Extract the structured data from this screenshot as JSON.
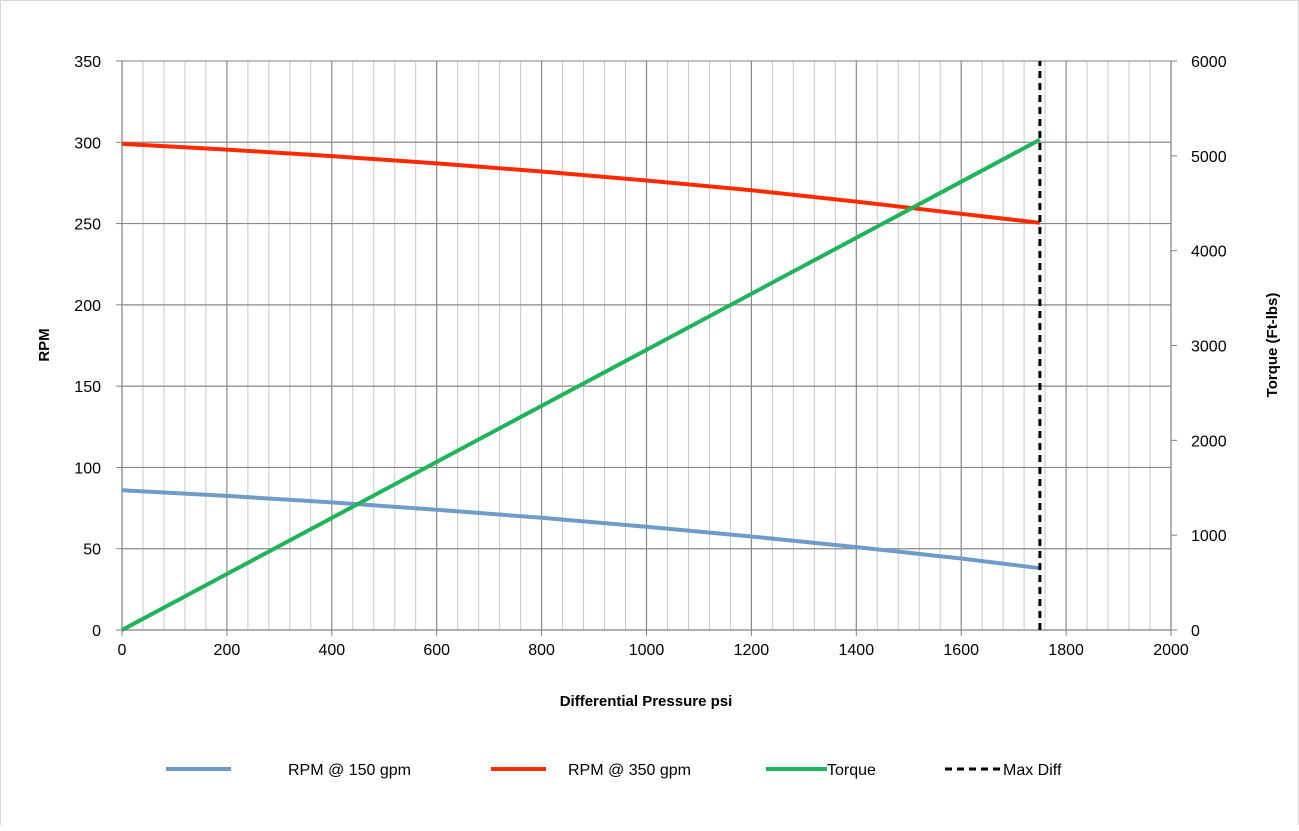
{
  "chart_data": {
    "type": "line",
    "title": "",
    "xlabel": "Differential Pressure psi",
    "ylabel": "RPM",
    "y2label": "Torque (Ft-lbs)",
    "xlim": [
      0,
      2000
    ],
    "ylim": [
      0,
      350
    ],
    "y2lim": [
      0,
      6000
    ],
    "x_ticks": [
      "0",
      "200",
      "400",
      "600",
      "800",
      "1000",
      "1200",
      "1400",
      "1600",
      "1800",
      "2000"
    ],
    "y_ticks": [
      "0",
      "50",
      "100",
      "150",
      "200",
      "250",
      "300",
      "350"
    ],
    "y2_ticks": [
      "0",
      "1000",
      "2000",
      "3000",
      "4000",
      "5000",
      "6000"
    ],
    "grid": true,
    "legend_position": "bottom",
    "series": [
      {
        "name": "RPM @ 150 gpm",
        "axis": "left",
        "color": "#6f9bcb",
        "style": "solid",
        "x": [
          0,
          200,
          400,
          600,
          800,
          1000,
          1200,
          1400,
          1600,
          1750
        ],
        "y": [
          86,
          82.5,
          78.5,
          74,
          69,
          63.5,
          57.5,
          51,
          44,
          38
        ]
      },
      {
        "name": "RPM @ 350 gpm",
        "axis": "left",
        "color": "#ff2a00",
        "style": "solid",
        "x": [
          0,
          200,
          400,
          600,
          800,
          1000,
          1200,
          1400,
          1600,
          1750
        ],
        "y": [
          299,
          295.5,
          291.5,
          287,
          282,
          276.5,
          270.5,
          263.5,
          256,
          250.5
        ]
      },
      {
        "name": "Torque",
        "axis": "right",
        "color": "#1fb35a",
        "style": "solid",
        "x": [
          0,
          1750
        ],
        "y": [
          0,
          5170
        ]
      },
      {
        "name": "Max Diff",
        "axis": "right",
        "color": "#000000",
        "style": "dashed",
        "x": [
          1750,
          1750
        ],
        "y": [
          0,
          6000
        ]
      }
    ]
  }
}
